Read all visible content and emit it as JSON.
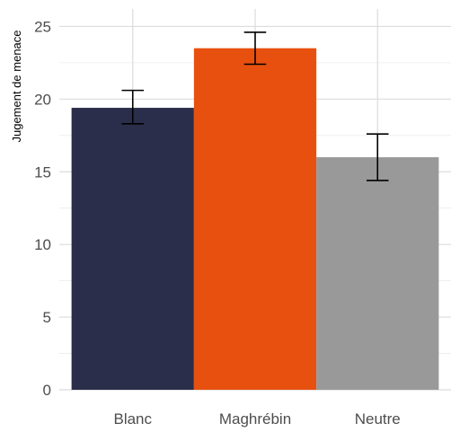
{
  "chart_data": {
    "type": "bar",
    "title": "",
    "xlabel": "",
    "ylabel": "Jugement de menace",
    "categories": [
      "Blanc",
      "Maghrébin",
      "Neutre"
    ],
    "values": [
      19.4,
      23.5,
      16.0
    ],
    "error_low": [
      18.3,
      22.4,
      14.4
    ],
    "error_high": [
      20.6,
      24.6,
      17.6
    ],
    "colors": [
      "#2b2e4a",
      "#e8500f",
      "#999999"
    ],
    "ylim": [
      0,
      26.2
    ],
    "yticks": [
      "0",
      "5",
      "10",
      "15",
      "20",
      "25"
    ],
    "ytick_values": [
      0,
      5,
      10,
      15,
      20,
      25
    ],
    "grid": true,
    "legend": "none"
  }
}
